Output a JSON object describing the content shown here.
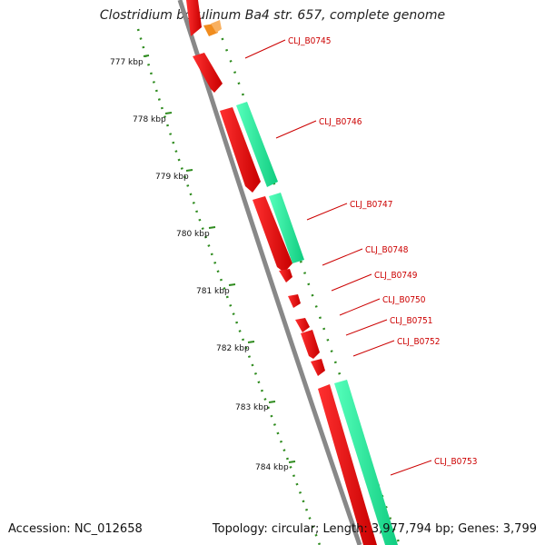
{
  "title": "Clostridium botulinum Ba4 str. 657, complete genome",
  "accession": "Accession: NC_012658",
  "topology": "Topology: circular; Length: 3,977,794 bp; Genes: 3,799",
  "scale_labels": [
    "777 kbp",
    "778 kbp",
    "779 kbp",
    "780 kbp",
    "781 kbp",
    "782 kbp",
    "783 kbp",
    "784 kbp"
  ],
  "gene_labels": [
    "CLJ_B0745",
    "CLJ_B0746",
    "CLJ_B0747",
    "CLJ_B0748",
    "CLJ_B0749",
    "CLJ_B0750",
    "CLJ_B0751",
    "CLJ_B0752",
    "CLJ_B0753"
  ],
  "colors": {
    "backbone": "#888888",
    "gene": "#ee0000",
    "gene_shade": "#aa0000",
    "feature": "#22ee99",
    "feature_shade": "#11aa66",
    "partial_gene": "#f08c1e",
    "ticks": "#2e8b1e",
    "label": "#cc0000"
  }
}
